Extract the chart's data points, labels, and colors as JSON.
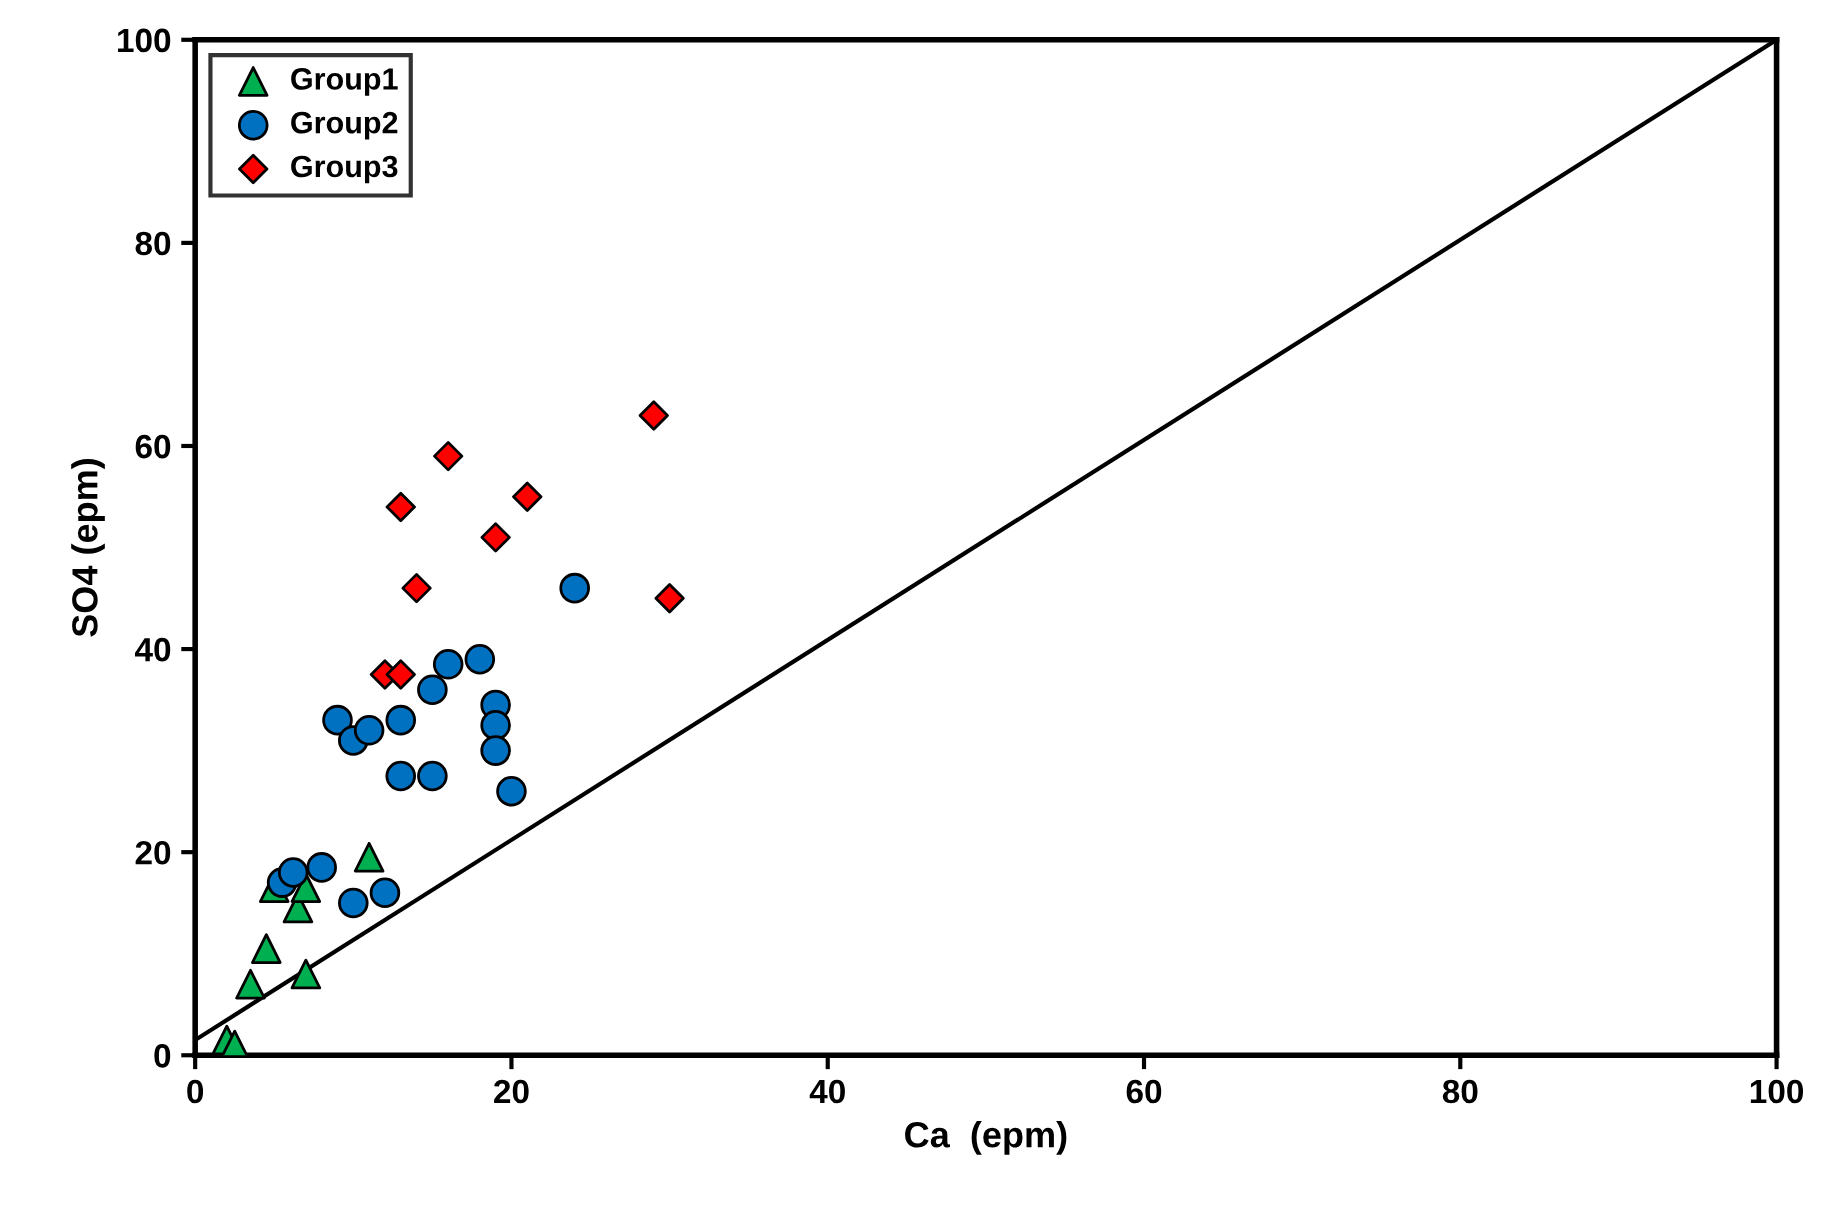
{
  "chart_data": {
    "type": "scatter",
    "xlabel": "Ca  (epm)",
    "ylabel": "SO4 (epm)",
    "xlim": [
      0,
      100
    ],
    "ylim": [
      0,
      100
    ],
    "xticks": [
      0,
      20,
      40,
      60,
      80,
      100
    ],
    "yticks": [
      0,
      20,
      40,
      60,
      80,
      100
    ],
    "grid": false,
    "legend": "top left",
    "series": [
      {
        "name": "Group1",
        "color": "#00b050",
        "marker": "triangle",
        "x": [
          2,
          2.5,
          3.5,
          4.5,
          5,
          6.5,
          7,
          7,
          11
        ],
        "values": [
          1.5,
          1,
          7,
          10.5,
          16.5,
          14.5,
          16.5,
          8,
          19.5
        ]
      },
      {
        "name": "Group2",
        "color": "#0070c0",
        "marker": "circle",
        "x": [
          5.5,
          6.2,
          8,
          10,
          12,
          9,
          10,
          11,
          13,
          13,
          15,
          15,
          16,
          18,
          19,
          19,
          19,
          20,
          24
        ],
        "values": [
          17,
          18,
          18.5,
          15,
          16,
          33,
          31,
          32,
          33,
          27.5,
          27.5,
          36,
          38.5,
          39,
          34.5,
          32.5,
          30,
          26,
          46
        ]
      },
      {
        "name": "Group3",
        "color": "#ff0000",
        "marker": "diamond",
        "x": [
          12,
          13,
          13,
          14,
          16,
          19,
          21,
          29,
          30
        ],
        "values": [
          37.5,
          37.5,
          54,
          46,
          59,
          51,
          55,
          63,
          45
        ]
      },
      {
        "type": "line",
        "color": "#000000",
        "marker": "none",
        "line_style": "solid",
        "x": [
          0,
          100
        ],
        "values": [
          1.5,
          100
        ]
      }
    ]
  }
}
